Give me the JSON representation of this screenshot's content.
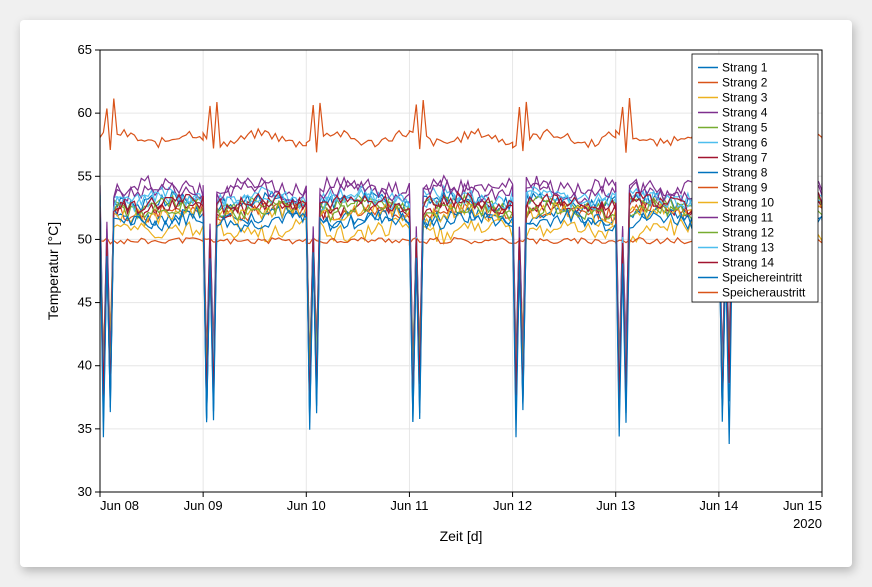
{
  "chart": {
    "type": "line",
    "xlabel": "Zeit [d]",
    "ylabel": "Temperatur [°C]",
    "ylim": [
      30,
      65
    ],
    "ytick_step": 5,
    "x_ticks": [
      "Jun 08",
      "Jun 09",
      "Jun 10",
      "Jun 11",
      "Jun 12",
      "Jun 13",
      "Jun 14",
      "Jun 15"
    ],
    "x_secondary": "2020",
    "background_color": "#ffffff",
    "grid_color": "#e6e6e6",
    "axis_color": "#000000",
    "label_fontsize": 14,
    "tick_fontsize": 13,
    "line_width": 1.2,
    "legend": {
      "position": "top-right",
      "border_color": "#000000",
      "background": "#ffffff",
      "fontsize": 12
    },
    "dip_depths": {
      "Strang 1": 36,
      "Strang 2": 38,
      "Strang 3": 39,
      "Strang 4": 40,
      "Strang 5": 38,
      "Strang 6": 39,
      "Strang 7": 37,
      "Strang 8": 36,
      "Strang 9": 49,
      "Strang 10": 41,
      "Strang 11": 40,
      "Strang 12": 39,
      "Strang 13": 38,
      "Strang 14": 37,
      "Speichereintritt": 35
    },
    "series": [
      {
        "name": "Strang 1",
        "color": "#0072bd",
        "base": 53.0,
        "noise": 0.6,
        "dip": true
      },
      {
        "name": "Strang 2",
        "color": "#d95319",
        "base": 52.2,
        "noise": 0.6,
        "dip": true
      },
      {
        "name": "Strang 3",
        "color": "#edb120",
        "base": 50.7,
        "noise": 0.7,
        "dip": true
      },
      {
        "name": "Strang 4",
        "color": "#7e2f8e",
        "base": 54.2,
        "noise": 0.6,
        "dip": true
      },
      {
        "name": "Strang 5",
        "color": "#77ac30",
        "base": 52.8,
        "noise": 0.5,
        "dip": true
      },
      {
        "name": "Strang 6",
        "color": "#4dbeee",
        "base": 53.4,
        "noise": 0.6,
        "dip": true
      },
      {
        "name": "Strang 7",
        "color": "#a2142f",
        "base": 52.5,
        "noise": 0.6,
        "dip": true
      },
      {
        "name": "Strang 8",
        "color": "#0072bd",
        "base": 51.8,
        "noise": 0.6,
        "dip": true
      },
      {
        "name": "Strang 9",
        "color": "#d95319",
        "base": 49.9,
        "noise": 0.25,
        "dip": false
      },
      {
        "name": "Strang 10",
        "color": "#edb120",
        "base": 52.0,
        "noise": 0.7,
        "dip": true
      },
      {
        "name": "Strang 11",
        "color": "#7e2f8e",
        "base": 53.8,
        "noise": 0.6,
        "dip": true
      },
      {
        "name": "Strang 12",
        "color": "#77ac30",
        "base": 52.3,
        "noise": 0.6,
        "dip": true
      },
      {
        "name": "Strang 13",
        "color": "#4dbeee",
        "base": 53.1,
        "noise": 0.6,
        "dip": true
      },
      {
        "name": "Strang 14",
        "color": "#a2142f",
        "base": 52.9,
        "noise": 0.6,
        "dip": true
      },
      {
        "name": "Speichereintritt",
        "color": "#0072bd",
        "base": 51.5,
        "noise": 0.6,
        "dip": true
      },
      {
        "name": "Speicheraustritt",
        "color": "#d95319",
        "base": 58.0,
        "noise": 0.5,
        "dip": false,
        "hot": true
      }
    ]
  }
}
